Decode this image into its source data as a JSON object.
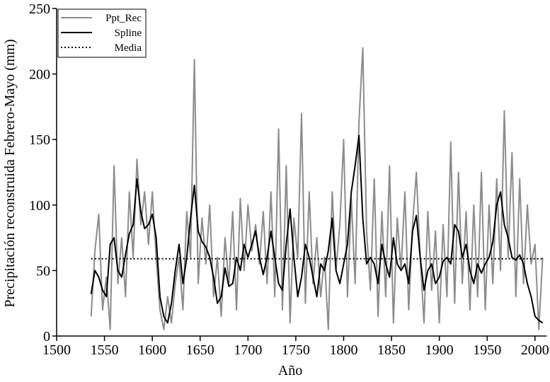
{
  "chart_data": {
    "type": "line",
    "xlabel": "Año",
    "ylabel": "Precipitación reconstruida Febrero-Mayo (mm)",
    "x": [
      1536,
      1540,
      1544,
      1548,
      1552,
      1556,
      1560,
      1564,
      1568,
      1572,
      1576,
      1580,
      1584,
      1588,
      1592,
      1596,
      1600,
      1604,
      1608,
      1612,
      1616,
      1620,
      1624,
      1628,
      1632,
      1636,
      1640,
      1644,
      1648,
      1652,
      1656,
      1660,
      1664,
      1668,
      1672,
      1676,
      1680,
      1684,
      1688,
      1692,
      1696,
      1700,
      1704,
      1708,
      1712,
      1716,
      1720,
      1724,
      1728,
      1732,
      1736,
      1740,
      1744,
      1748,
      1752,
      1756,
      1760,
      1764,
      1768,
      1772,
      1776,
      1780,
      1784,
      1788,
      1792,
      1796,
      1800,
      1804,
      1808,
      1812,
      1816,
      1820,
      1824,
      1828,
      1832,
      1836,
      1840,
      1844,
      1848,
      1852,
      1856,
      1860,
      1864,
      1868,
      1872,
      1876,
      1880,
      1884,
      1888,
      1892,
      1896,
      1900,
      1904,
      1908,
      1912,
      1916,
      1920,
      1924,
      1928,
      1932,
      1936,
      1940,
      1944,
      1948,
      1952,
      1956,
      1960,
      1964,
      1968,
      1972,
      1976,
      1980,
      1984,
      1988,
      1992,
      1996,
      2000,
      2004,
      2008
    ],
    "series": [
      {
        "name": "Ppt_Rec",
        "color": "#8c8c8c",
        "width": 2,
        "values": [
          15,
          65,
          93,
          20,
          45,
          5,
          130,
          40,
          75,
          30,
          110,
          60,
          135,
          85,
          110,
          70,
          110,
          60,
          20,
          5,
          30,
          10,
          40,
          60,
          20,
          95,
          60,
          211,
          40,
          90,
          55,
          100,
          30,
          60,
          15,
          75,
          40,
          95,
          20,
          105,
          50,
          100,
          65,
          85,
          55,
          95,
          40,
          110,
          30,
          158,
          20,
          130,
          10,
          90,
          60,
          170,
          25,
          110,
          40,
          75,
          30,
          60,
          5,
          110,
          50,
          85,
          150,
          30,
          105,
          40,
          163,
          220,
          80,
          35,
          120,
          15,
          95,
          30,
          130,
          10,
          90,
          50,
          110,
          20,
          85,
          125,
          60,
          10,
          95,
          35,
          80,
          10,
          85,
          30,
          148,
          25,
          125,
          40,
          95,
          20,
          100,
          30,
          125,
          20,
          100,
          40,
          120,
          50,
          172,
          60,
          140,
          30,
          120,
          40,
          100,
          55,
          70,
          5,
          60
        ]
      },
      {
        "name": "Spline",
        "color": "#000000",
        "width": 2,
        "values": [
          32,
          50,
          45,
          35,
          30,
          70,
          75,
          50,
          45,
          62,
          78,
          85,
          120,
          95,
          82,
          85,
          93,
          75,
          30,
          15,
          10,
          25,
          50,
          70,
          40,
          60,
          90,
          115,
          80,
          72,
          68,
          60,
          45,
          25,
          30,
          52,
          38,
          40,
          60,
          50,
          70,
          60,
          70,
          80,
          60,
          47,
          60,
          80,
          60,
          40,
          35,
          70,
          97,
          60,
          30,
          45,
          70,
          60,
          45,
          30,
          55,
          50,
          65,
          90,
          50,
          40,
          55,
          70,
          110,
          130,
          153,
          90,
          55,
          60,
          55,
          40,
          70,
          55,
          45,
          75,
          55,
          50,
          55,
          40,
          80,
          92,
          60,
          35,
          50,
          55,
          40,
          45,
          57,
          60,
          55,
          85,
          80,
          60,
          70,
          50,
          40,
          55,
          48,
          55,
          60,
          72,
          100,
          110,
          85,
          75,
          60,
          58,
          62,
          55,
          40,
          30,
          15,
          12,
          10
        ]
      }
    ],
    "reference_line": {
      "name": "Media",
      "value": 59,
      "color": "#000000"
    },
    "xlim": [
      1500,
      2012
    ],
    "xticks": [
      1500,
      1550,
      1600,
      1650,
      1700,
      1750,
      1800,
      1850,
      1900,
      1950,
      2000
    ],
    "ylim": [
      0,
      250
    ],
    "yticks": [
      0,
      50,
      100,
      150,
      200,
      250
    ],
    "legend": "upper left",
    "grid": false
  }
}
